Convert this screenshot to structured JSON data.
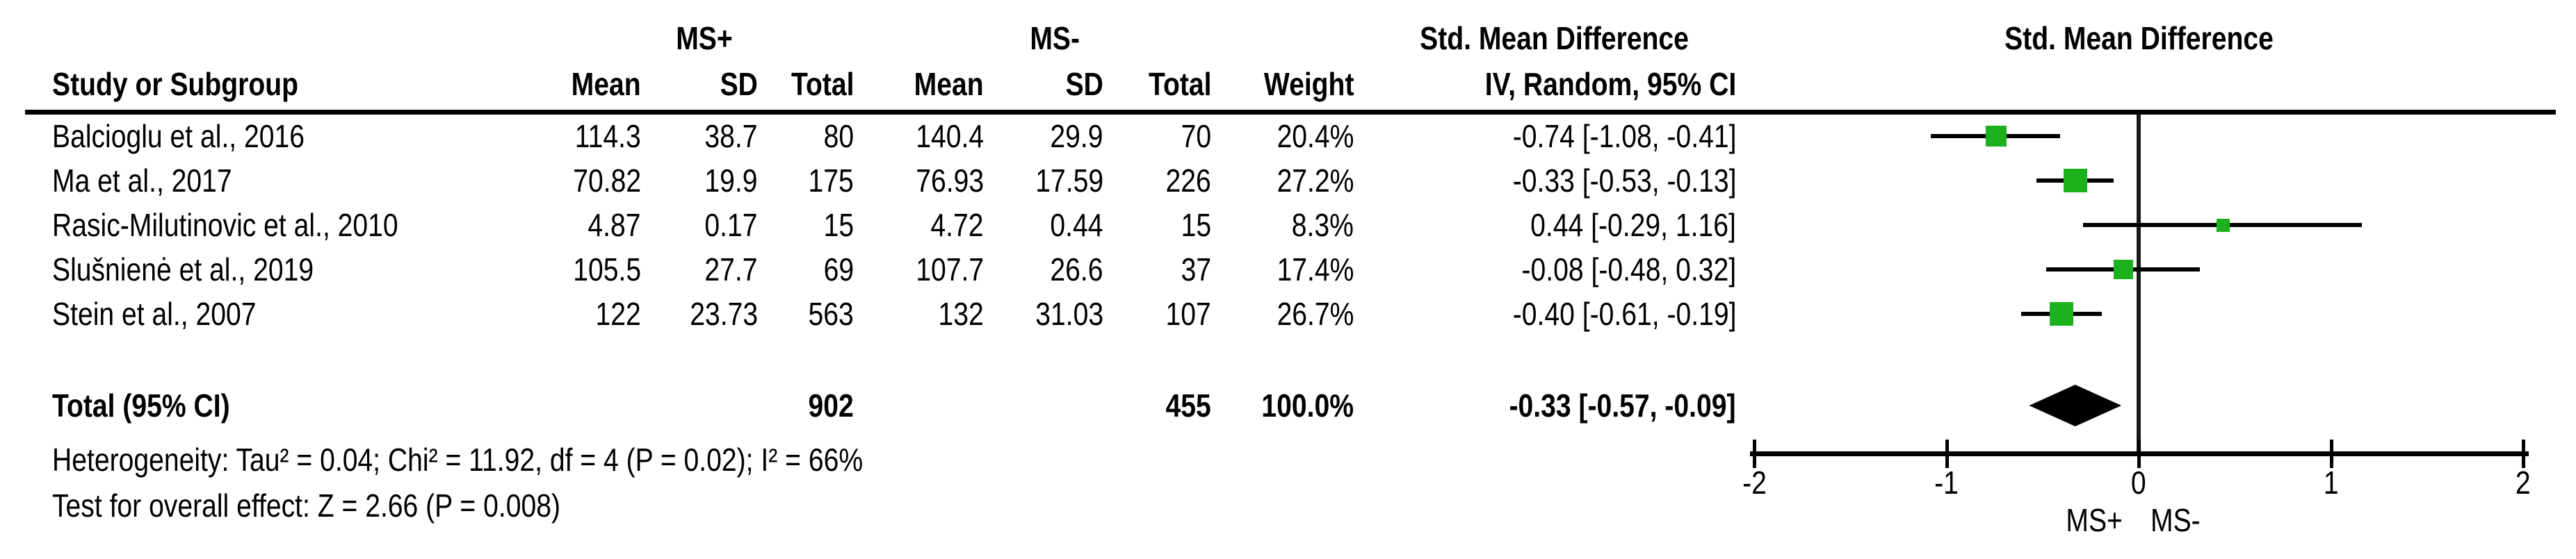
{
  "colors": {
    "marker_green": "#1CB11C",
    "line_black": "#000000",
    "background": "#FFFFFF"
  },
  "header": {
    "group1": "MS+",
    "group2": "MS-",
    "smd_title": "Std. Mean Difference",
    "col_study": "Study or Subgroup",
    "col_mean": "Mean",
    "col_sd": "SD",
    "col_total": "Total",
    "col_weight": "Weight",
    "col_ci": "IV, Random, 95% CI"
  },
  "chart_data": {
    "type": "forest",
    "effect_measure": "Std. Mean Difference",
    "model": "IV, Random, 95% CI",
    "studies": [
      {
        "label": "Balcioglu et al., 2016",
        "mean1": "114.3",
        "sd1": "38.7",
        "total1": "80",
        "mean2": "140.4",
        "sd2": "29.9",
        "total2": "70",
        "weight": "20.4%",
        "ci_text": "-0.74 [-1.08, -0.41]",
        "smd": -0.74,
        "lo": -1.08,
        "hi": -0.41,
        "w": 20.4
      },
      {
        "label": "Ma et al., 2017",
        "mean1": "70.82",
        "sd1": "19.9",
        "total1": "175",
        "mean2": "76.93",
        "sd2": "17.59",
        "total2": "226",
        "weight": "27.2%",
        "ci_text": "-0.33 [-0.53, -0.13]",
        "smd": -0.33,
        "lo": -0.53,
        "hi": -0.13,
        "w": 27.2
      },
      {
        "label": "Rasic-Milutinovic et al., 2010",
        "mean1": "4.87",
        "sd1": "0.17",
        "total1": "15",
        "mean2": "4.72",
        "sd2": "0.44",
        "total2": "15",
        "weight": "8.3%",
        "ci_text": "0.44 [-0.29, 1.16]",
        "smd": 0.44,
        "lo": -0.29,
        "hi": 1.16,
        "w": 8.3
      },
      {
        "label": "Slušnienė et al., 2019",
        "mean1": "105.5",
        "sd1": "27.7",
        "total1": "69",
        "mean2": "107.7",
        "sd2": "26.6",
        "total2": "37",
        "weight": "17.4%",
        "ci_text": "-0.08 [-0.48, 0.32]",
        "smd": -0.08,
        "lo": -0.48,
        "hi": 0.32,
        "w": 17.4
      },
      {
        "label": "Stein et al., 2007",
        "mean1": "122",
        "sd1": "23.73",
        "total1": "563",
        "mean2": "132",
        "sd2": "31.03",
        "total2": "107",
        "weight": "26.7%",
        "ci_text": "-0.40 [-0.61, -0.19]",
        "smd": -0.4,
        "lo": -0.61,
        "hi": -0.19,
        "w": 26.7
      }
    ],
    "total": {
      "label": "Total (95% CI)",
      "total1": "902",
      "total2": "455",
      "weight": "100.0%",
      "ci_text": "-0.33 [-0.57, -0.09]",
      "smd": -0.33,
      "lo": -0.57,
      "hi": -0.09
    },
    "footers": {
      "heterogeneity": "Heterogeneity: Tau² = 0.04; Chi² = 11.92, df = 4 (P = 0.02); I² = 66%",
      "overall_effect": "Test for overall effect: Z = 2.66 (P = 0.008)"
    },
    "axis": {
      "min": -2,
      "max": 2,
      "ticks": [
        -2,
        -1,
        0,
        1,
        2
      ],
      "tick_labels": [
        "-2",
        "-1",
        "0",
        "1",
        "2"
      ],
      "label_left": "MS+",
      "label_right": "MS-",
      "grid": false
    }
  }
}
